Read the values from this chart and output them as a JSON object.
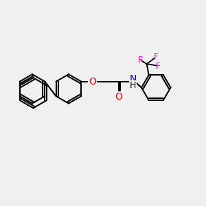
{
  "bg_color": "#f0f0f0",
  "bond_color": "#000000",
  "bond_width": 1.5,
  "atom_colors": {
    "O": "#ff0000",
    "N": "#0000ff",
    "F": "#ff00ff",
    "C": "#000000",
    "H": "#000000"
  },
  "font_size": 9,
  "figsize": [
    3.0,
    3.0
  ],
  "dpi": 100
}
